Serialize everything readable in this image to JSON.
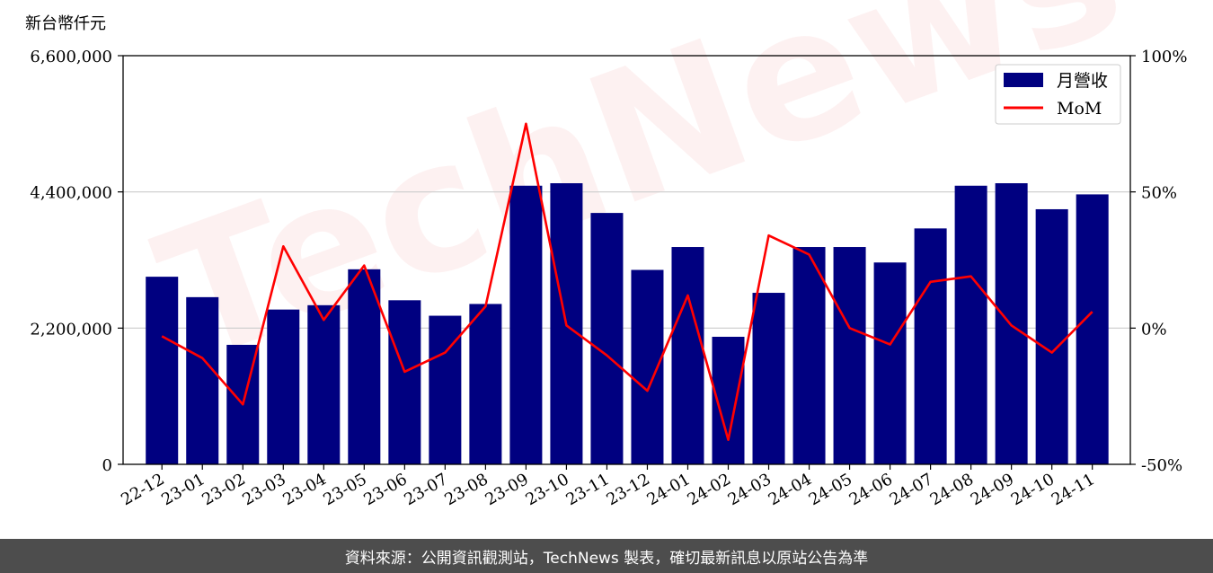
{
  "unit_label": "新台幣仟元",
  "footer_text": "資料來源：公開資訊觀測站，TechNews 製表，確切最新訊息以原站公告為準",
  "watermark_text": "TechNews",
  "colors": {
    "bar": "#000080",
    "line": "#ff0000",
    "grid": "#cccccc"
  },
  "chart_data": {
    "type": "bar",
    "categories": [
      "22-12",
      "23-01",
      "23-02",
      "23-03",
      "23-04",
      "23-05",
      "23-06",
      "23-07",
      "23-08",
      "23-09",
      "23-10",
      "23-11",
      "23-12",
      "24-01",
      "24-02",
      "24-03",
      "24-04",
      "24-05",
      "24-06",
      "24-07",
      "24-08",
      "24-09",
      "24-10",
      "24-11"
    ],
    "series": [
      {
        "name": "月營收",
        "type": "bar",
        "axis": "left",
        "values": [
          3030000,
          2700000,
          1930000,
          2500000,
          2570000,
          3150000,
          2650000,
          2400000,
          2590000,
          4500000,
          4540000,
          4060000,
          3140000,
          3510000,
          2060000,
          2770000,
          3510000,
          3510000,
          3260000,
          3810000,
          4500000,
          4540000,
          4120000,
          4360000
        ]
      },
      {
        "name": "MoM",
        "type": "line",
        "axis": "right",
        "values": [
          -3,
          -11,
          -28,
          30,
          3,
          23,
          -16,
          -9,
          8,
          75,
          1,
          -10,
          -23,
          12,
          -41,
          34,
          27,
          0,
          -6,
          17,
          19,
          1,
          -9,
          6
        ]
      }
    ],
    "y_left": {
      "ticks": [
        "0",
        "2,200,000",
        "4,400,000",
        "6,600,000"
      ],
      "tick_values": [
        0,
        2200000,
        4400000,
        6600000
      ],
      "range": [
        0,
        6600000
      ]
    },
    "y_right": {
      "ticks": [
        "-50%",
        "0%",
        "50%",
        "100%"
      ],
      "tick_values": [
        -50,
        0,
        50,
        100
      ],
      "range": [
        -50,
        100
      ]
    },
    "grid": "horizontal",
    "legend_placement": "top-right"
  }
}
